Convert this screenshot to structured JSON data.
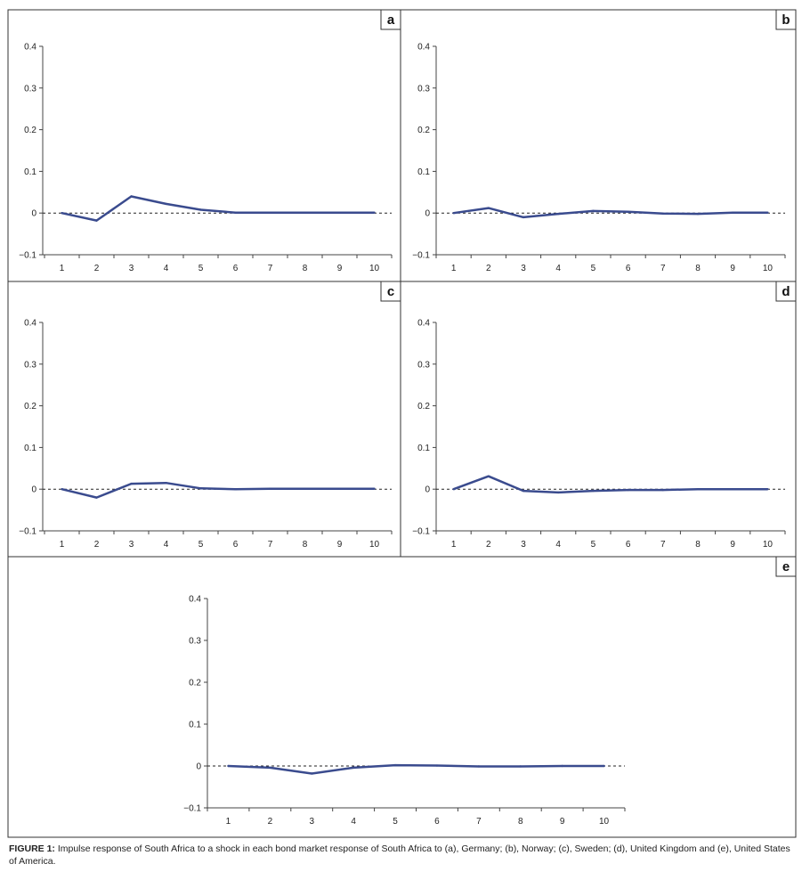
{
  "chart_data": [
    {
      "type": "line",
      "label": "a",
      "x": [
        1,
        2,
        3,
        4,
        5,
        6,
        7,
        8,
        9,
        10
      ],
      "y": [
        0,
        -0.018,
        0.04,
        0.022,
        0.008,
        0.001,
        0.001,
        0.001,
        0.001,
        0.001
      ],
      "ylim": [
        -0.1,
        0.4
      ],
      "yticks": [
        "0.4",
        "0.3",
        "0.2",
        "0.1",
        "0",
        "−0.1"
      ],
      "xticks": [
        "1",
        "2",
        "3",
        "4",
        "5",
        "6",
        "7",
        "8",
        "9",
        "10"
      ],
      "zero_line": "dashed",
      "line_color": "#3a4b8e"
    },
    {
      "type": "line",
      "label": "b",
      "x": [
        1,
        2,
        3,
        4,
        5,
        6,
        7,
        8,
        9,
        10
      ],
      "y": [
        0,
        0.012,
        -0.01,
        -0.002,
        0.005,
        0.003,
        -0.001,
        -0.002,
        0.001,
        0.001
      ],
      "ylim": [
        -0.1,
        0.4
      ],
      "yticks": [
        "0.4",
        "0.3",
        "0.2",
        "0.1",
        "0",
        "−0.1"
      ],
      "xticks": [
        "1",
        "2",
        "3",
        "4",
        "5",
        "6",
        "7",
        "8",
        "9",
        "10"
      ],
      "zero_line": "dashed",
      "line_color": "#3a4b8e"
    },
    {
      "type": "line",
      "label": "c",
      "x": [
        1,
        2,
        3,
        4,
        5,
        6,
        7,
        8,
        9,
        10
      ],
      "y": [
        0,
        -0.02,
        0.013,
        0.015,
        0.002,
        0.0,
        0.001,
        0.001,
        0.001,
        0.001
      ],
      "ylim": [
        -0.1,
        0.4
      ],
      "yticks": [
        "0.4",
        "0.3",
        "0.2",
        "0.1",
        "0",
        "−0.1"
      ],
      "xticks": [
        "1",
        "2",
        "3",
        "4",
        "5",
        "6",
        "7",
        "8",
        "9",
        "10"
      ],
      "zero_line": "dashed",
      "line_color": "#3a4b8e"
    },
    {
      "type": "line",
      "label": "d",
      "x": [
        1,
        2,
        3,
        4,
        5,
        6,
        7,
        8,
        9,
        10
      ],
      "y": [
        0,
        0.031,
        -0.004,
        -0.008,
        -0.004,
        -0.002,
        -0.002,
        0.0,
        0.0,
        0.0
      ],
      "ylim": [
        -0.1,
        0.4
      ],
      "yticks": [
        "0.4",
        "0.3",
        "0.2",
        "0.1",
        "0",
        "−0.1"
      ],
      "xticks": [
        "1",
        "2",
        "3",
        "4",
        "5",
        "6",
        "7",
        "8",
        "9",
        "10"
      ],
      "zero_line": "dashed",
      "line_color": "#3a4b8e"
    },
    {
      "type": "line",
      "label": "e",
      "x": [
        1,
        2,
        3,
        4,
        5,
        6,
        7,
        8,
        9,
        10
      ],
      "y": [
        0,
        -0.004,
        -0.018,
        -0.004,
        0.002,
        0.001,
        -0.001,
        -0.001,
        0.0,
        0.0
      ],
      "ylim": [
        -0.1,
        0.4
      ],
      "yticks": [
        "0.4",
        "0.3",
        "0.2",
        "0.1",
        "0",
        "−0.1"
      ],
      "xticks": [
        "1",
        "2",
        "3",
        "4",
        "5",
        "6",
        "7",
        "8",
        "9",
        "10"
      ],
      "zero_line": "dashed",
      "line_color": "#3a4b8e"
    }
  ],
  "caption": {
    "label": "FIGURE 1:",
    "text": " Impulse response of South Africa to a shock in each bond market response of South Africa to (a), Germany; (b), Norway; (c), Sweden; (d), United Kingdom and (e), United States of America."
  }
}
